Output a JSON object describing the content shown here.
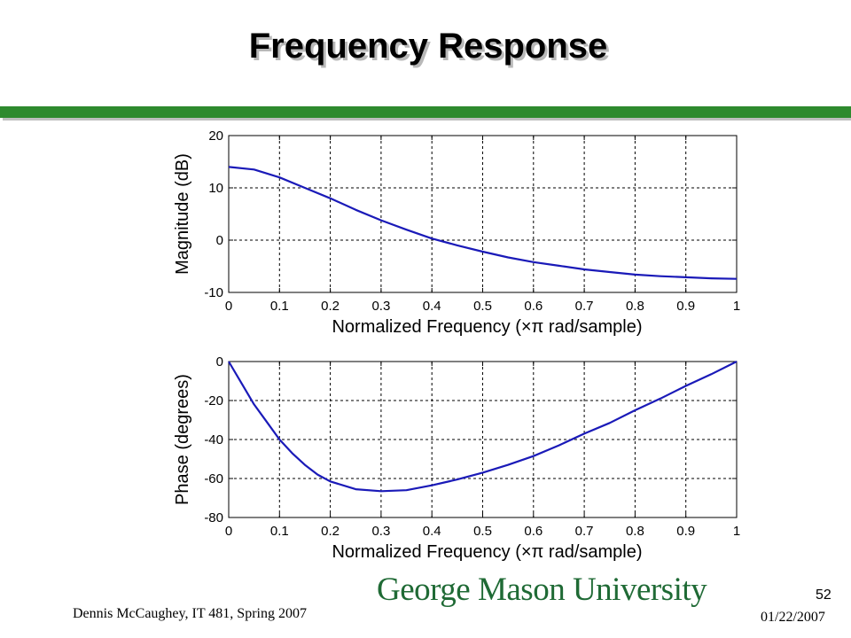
{
  "slide": {
    "title": "Frequency Response",
    "footer_left": "Dennis McCaughey, IT 481, Spring 2007",
    "page_number": "52",
    "date": "01/22/2007",
    "logo_text": "George Mason University"
  },
  "colors": {
    "accent_green": "#2e8a2e",
    "curve": "#1a1ab8",
    "logo": "#1f6a35"
  },
  "chart_data": [
    {
      "type": "line",
      "xlabel": "Normalized Frequency  (×π rad/sample)",
      "ylabel": "Magnitude (dB)",
      "xlim": [
        0,
        1
      ],
      "ylim": [
        -10,
        20
      ],
      "xticks": [
        "0",
        "0.1",
        "0.2",
        "0.3",
        "0.4",
        "0.5",
        "0.6",
        "0.7",
        "0.8",
        "0.9",
        "1"
      ],
      "yticks": [
        "20",
        "10",
        "0",
        "-10"
      ],
      "grid": true,
      "x": [
        0,
        0.05,
        0.1,
        0.15,
        0.2,
        0.25,
        0.3,
        0.35,
        0.4,
        0.45,
        0.5,
        0.55,
        0.6,
        0.65,
        0.7,
        0.75,
        0.8,
        0.85,
        0.9,
        0.95,
        1.0
      ],
      "y": [
        14.0,
        13.5,
        12.0,
        10.0,
        8.0,
        5.8,
        3.8,
        2.0,
        0.3,
        -1.0,
        -2.2,
        -3.3,
        -4.2,
        -4.9,
        -5.6,
        -6.1,
        -6.6,
        -6.9,
        -7.1,
        -7.3,
        -7.4
      ]
    },
    {
      "type": "line",
      "xlabel": "Normalized Frequency  (×π rad/sample)",
      "ylabel": "Phase (degrees)",
      "xlim": [
        0,
        1
      ],
      "ylim": [
        -80,
        0
      ],
      "xticks": [
        "0",
        "0.1",
        "0.2",
        "0.3",
        "0.4",
        "0.5",
        "0.6",
        "0.7",
        "0.8",
        "0.9",
        "1"
      ],
      "yticks": [
        "0",
        "-20",
        "-40",
        "-60",
        "-80"
      ],
      "grid": true,
      "x": [
        0,
        0.025,
        0.05,
        0.075,
        0.1,
        0.125,
        0.15,
        0.175,
        0.2,
        0.25,
        0.3,
        0.35,
        0.4,
        0.45,
        0.5,
        0.55,
        0.6,
        0.65,
        0.7,
        0.75,
        0.8,
        0.85,
        0.9,
        0.95,
        1.0
      ],
      "y": [
        0,
        -11,
        -22,
        -31,
        -40,
        -47,
        -53,
        -58,
        -61.5,
        -65.5,
        -66.5,
        -66,
        -63.5,
        -60.5,
        -57,
        -53,
        -48.5,
        -43,
        -37,
        -31.5,
        -25,
        -19,
        -12.5,
        -6.5,
        0
      ]
    }
  ]
}
